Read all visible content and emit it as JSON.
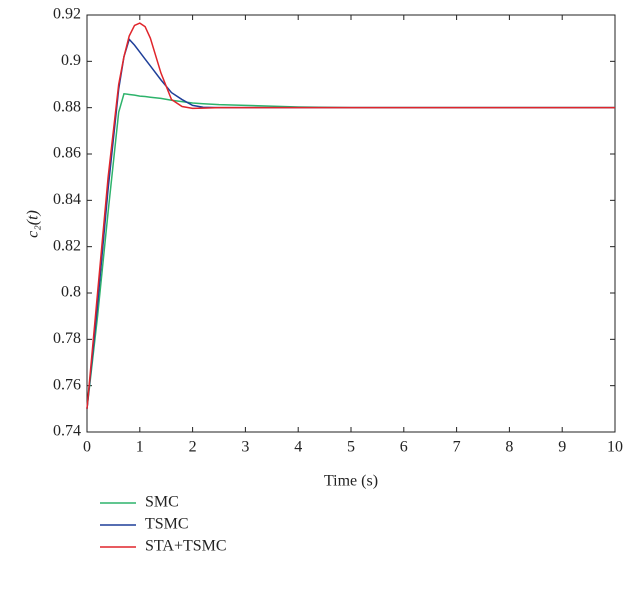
{
  "chart_data": {
    "type": "line",
    "xlabel": "Time (s)",
    "ylabel": "c₂(t)",
    "x": [
      0,
      0.2,
      0.4,
      0.6,
      0.7,
      0.8,
      0.9,
      1.0,
      1.1,
      1.2,
      1.4,
      1.6,
      1.8,
      2.0,
      2.2,
      2.5,
      3,
      4,
      5,
      6,
      7,
      8,
      9,
      10
    ],
    "series": [
      {
        "name": "SMC",
        "color": "#2db36b",
        "values": [
          0.75,
          0.79,
          0.835,
          0.878,
          0.886,
          0.8857,
          0.8854,
          0.885,
          0.8848,
          0.8845,
          0.884,
          0.8832,
          0.8826,
          0.882,
          0.8817,
          0.8813,
          0.881,
          0.8803,
          0.88,
          0.88,
          0.88,
          0.88,
          0.88,
          0.88
        ]
      },
      {
        "name": "TSMC",
        "color": "#1f3f99",
        "values": [
          0.75,
          0.795,
          0.845,
          0.888,
          0.902,
          0.9095,
          0.907,
          0.904,
          0.901,
          0.898,
          0.892,
          0.8865,
          0.8835,
          0.881,
          0.8802,
          0.88,
          0.88,
          0.88,
          0.88,
          0.88,
          0.88,
          0.88,
          0.88,
          0.88
        ]
      },
      {
        "name": "STA+TSMC",
        "color": "#e0252b",
        "values": [
          0.75,
          0.8,
          0.85,
          0.89,
          0.902,
          0.911,
          0.9155,
          0.9165,
          0.915,
          0.91,
          0.895,
          0.8835,
          0.8805,
          0.8797,
          0.8798,
          0.88,
          0.88,
          0.88,
          0.88,
          0.88,
          0.88,
          0.88,
          0.88,
          0.88
        ]
      }
    ],
    "xlim": [
      0,
      10
    ],
    "xticks": [
      0,
      1,
      2,
      3,
      4,
      5,
      6,
      7,
      8,
      9,
      10
    ],
    "ylim": [
      0.74,
      0.92
    ],
    "yticks": [
      0.74,
      0.76,
      0.78,
      0.8,
      0.82,
      0.84,
      0.86,
      0.88,
      0.9,
      0.92
    ],
    "grid": false,
    "legend": "bottom-left"
  }
}
